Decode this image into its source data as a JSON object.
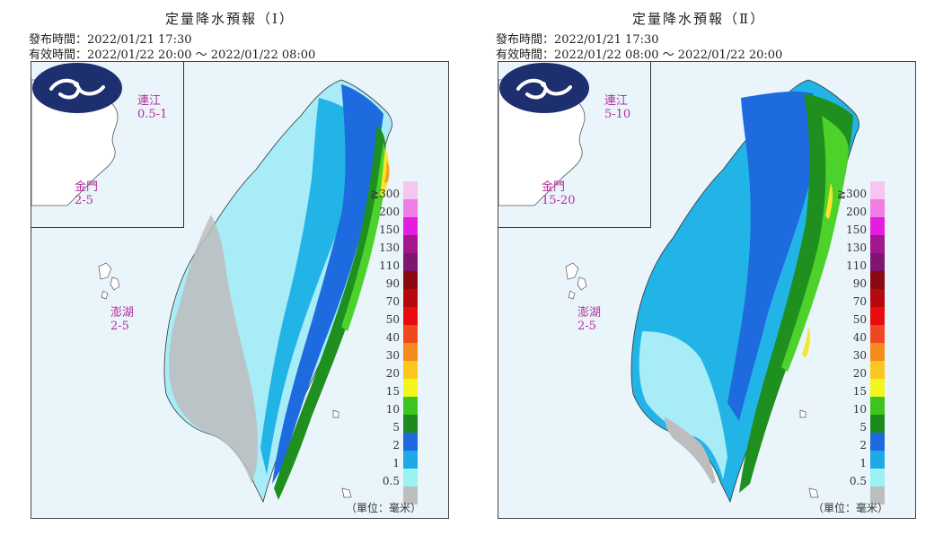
{
  "panels": [
    {
      "title": "定量降水預報（Ⅰ）",
      "issue_time": "發布時間：2022/01/21 17:30",
      "valid_time": "有效時間：2022/01/22 20:00 ～ 2022/01/22 08:00",
      "regions": {
        "matsu": {
          "name": "連江",
          "value": "0.5-1"
        },
        "kinmen": {
          "name": "金門",
          "value": "2-5"
        },
        "penghu": {
          "name": "澎湖",
          "value": "2-5"
        }
      }
    },
    {
      "title": "定量降水預報（Ⅱ）",
      "issue_time": "發布時間：2022/01/21 17:30",
      "valid_time": "有效時間：2022/01/22 08:00 ～ 2022/01/22 20:00",
      "regions": {
        "matsu": {
          "name": "連江",
          "value": "5-10"
        },
        "kinmen": {
          "name": "金門",
          "value": "15-20"
        },
        "penghu": {
          "name": "澎湖",
          "value": "2-5"
        }
      }
    }
  ],
  "legend": {
    "labels": [
      "≧300",
      "200",
      "150",
      "130",
      "110",
      "90",
      "70",
      "50",
      "40",
      "30",
      "20",
      "15",
      "10",
      "5",
      "2",
      "1",
      "0.5"
    ],
    "colors": [
      "#f5c6f0",
      "#f07ce6",
      "#e41ee0",
      "#a3168f",
      "#7e1570",
      "#8a0a10",
      "#b6090e",
      "#e80c0e",
      "#f0481e",
      "#f58a1e",
      "#fbc71e",
      "#f3f51e",
      "#3ec41e",
      "#1e8a1e",
      "#1e69e0",
      "#1ea8e6",
      "#9af2f2",
      "#bdbdbd"
    ]
  },
  "unit_label": "（單位：毫米）",
  "colors": {
    "sea": "#eaf5fb",
    "light_blue": "#a8ecf8",
    "cyan": "#22b4e6",
    "blue": "#1e6be0",
    "green": "#1f8f1f",
    "lime": "#4cd22a",
    "yellow": "#f7e62a",
    "orange": "#f7a11e",
    "gray": "#bdbdbd",
    "logo_navy": "#1d2f6f"
  }
}
